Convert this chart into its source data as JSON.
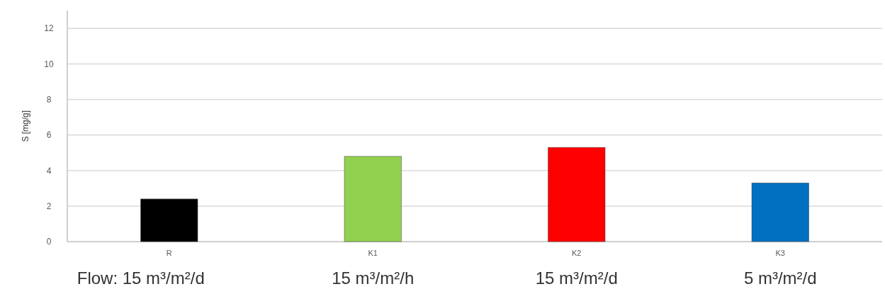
{
  "chart_data": {
    "type": "bar",
    "ylabel": "S [mg/g]",
    "categories": [
      "R",
      "K1",
      "K2",
      "K3"
    ],
    "values": [
      2.4,
      4.8,
      5.3,
      3.3
    ],
    "colors": [
      "#000000",
      "#92d050",
      "#ff0000",
      "#0070c0"
    ],
    "ylim": [
      0,
      13
    ],
    "yticks": [
      0,
      2,
      4,
      6,
      8,
      10,
      12
    ],
    "grid": "y",
    "annotations": [
      "Flow:  15 m³/m²/d",
      "15 m³/m²/h",
      "15 m³/m²/d",
      "5 m³/m²/d"
    ]
  }
}
